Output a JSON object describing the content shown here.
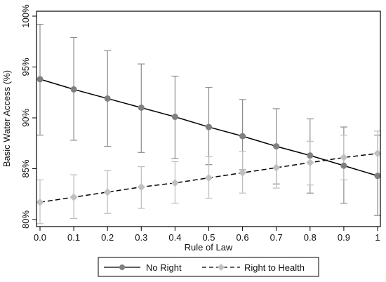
{
  "chart_data": {
    "type": "line",
    "title": "",
    "xlabel": "Rule of Law",
    "ylabel": "Basic Water Access (%)",
    "xlim": [
      0,
      1
    ],
    "ylim": [
      80,
      100
    ],
    "x_ticks": [
      "0.0",
      "0.1",
      "0.2",
      "0.3",
      "0.4",
      "0.5",
      "0.6",
      "0.7",
      "0.8",
      "0.9",
      "1"
    ],
    "y_ticks": [
      "80%",
      "85%",
      "90%",
      "95%",
      "100%"
    ],
    "grid": false,
    "legend_position": "bottom",
    "x": [
      0.0,
      0.1,
      0.2,
      0.3,
      0.4,
      0.5,
      0.6,
      0.7,
      0.8,
      0.9,
      1.0
    ],
    "series": [
      {
        "name": "No Right",
        "line_style": "solid",
        "marker": "circle",
        "line_color": "#000000",
        "marker_color": "#808080",
        "errorbar_color": "#8c8c8c",
        "values": [
          93.8,
          92.8,
          91.9,
          91.0,
          90.1,
          89.1,
          88.2,
          87.2,
          86.3,
          85.3,
          84.3
        ],
        "lower": [
          88.3,
          87.8,
          87.2,
          86.6,
          86.0,
          85.4,
          84.9,
          83.5,
          82.6,
          81.6,
          80.4
        ],
        "upper": [
          99.2,
          97.9,
          96.6,
          95.3,
          94.1,
          93.0,
          91.8,
          90.9,
          89.9,
          89.1,
          88.3
        ]
      },
      {
        "name": "Right to Health",
        "line_style": "dashed",
        "marker": "diamond",
        "line_color": "#000000",
        "marker_color": "#c0c0c0",
        "errorbar_color": "#bdbdbd",
        "values": [
          81.7,
          82.2,
          82.7,
          83.2,
          83.6,
          84.1,
          84.6,
          85.1,
          85.6,
          86.1,
          86.5
        ],
        "lower": [
          79.6,
          80.1,
          80.6,
          81.1,
          81.6,
          82.1,
          82.6,
          83.1,
          83.4,
          83.9,
          84.3
        ],
        "upper": [
          83.9,
          84.4,
          84.8,
          85.2,
          85.7,
          86.2,
          86.7,
          87.1,
          87.7,
          88.3,
          88.7
        ]
      }
    ]
  }
}
